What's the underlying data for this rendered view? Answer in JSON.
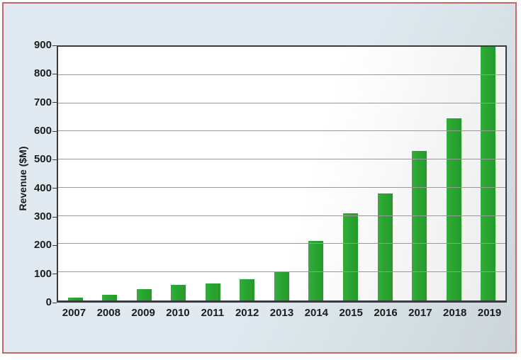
{
  "chart_data": {
    "type": "bar",
    "title": "",
    "xlabel": "",
    "ylabel": "Revenue ($M)",
    "categories": [
      "2007",
      "2008",
      "2009",
      "2010",
      "2011",
      "2012",
      "2013",
      "2014",
      "2015",
      "2016",
      "2017",
      "2018",
      "2019"
    ],
    "values": [
      10,
      20,
      40,
      55,
      60,
      75,
      100,
      210,
      310,
      380,
      530,
      645,
      900
    ],
    "ylim": [
      0,
      900
    ],
    "ytick_step": 100,
    "ytick_labels": [
      "0",
      "100",
      "200",
      "300",
      "400",
      "500",
      "600",
      "700",
      "800",
      "900"
    ],
    "grid": "horizontal",
    "legend": "none"
  },
  "colors": {
    "bar": "#2aa431",
    "grid": "#999999",
    "axis": "#3a3a3a",
    "frame_border": "#c76868",
    "background_outer_start": "#e0eaf0",
    "background_outer_end": "#ccd5da",
    "plot_bg_start": "#ffffff",
    "plot_bg_end": "#ececec",
    "text": "#1c1c1c"
  }
}
